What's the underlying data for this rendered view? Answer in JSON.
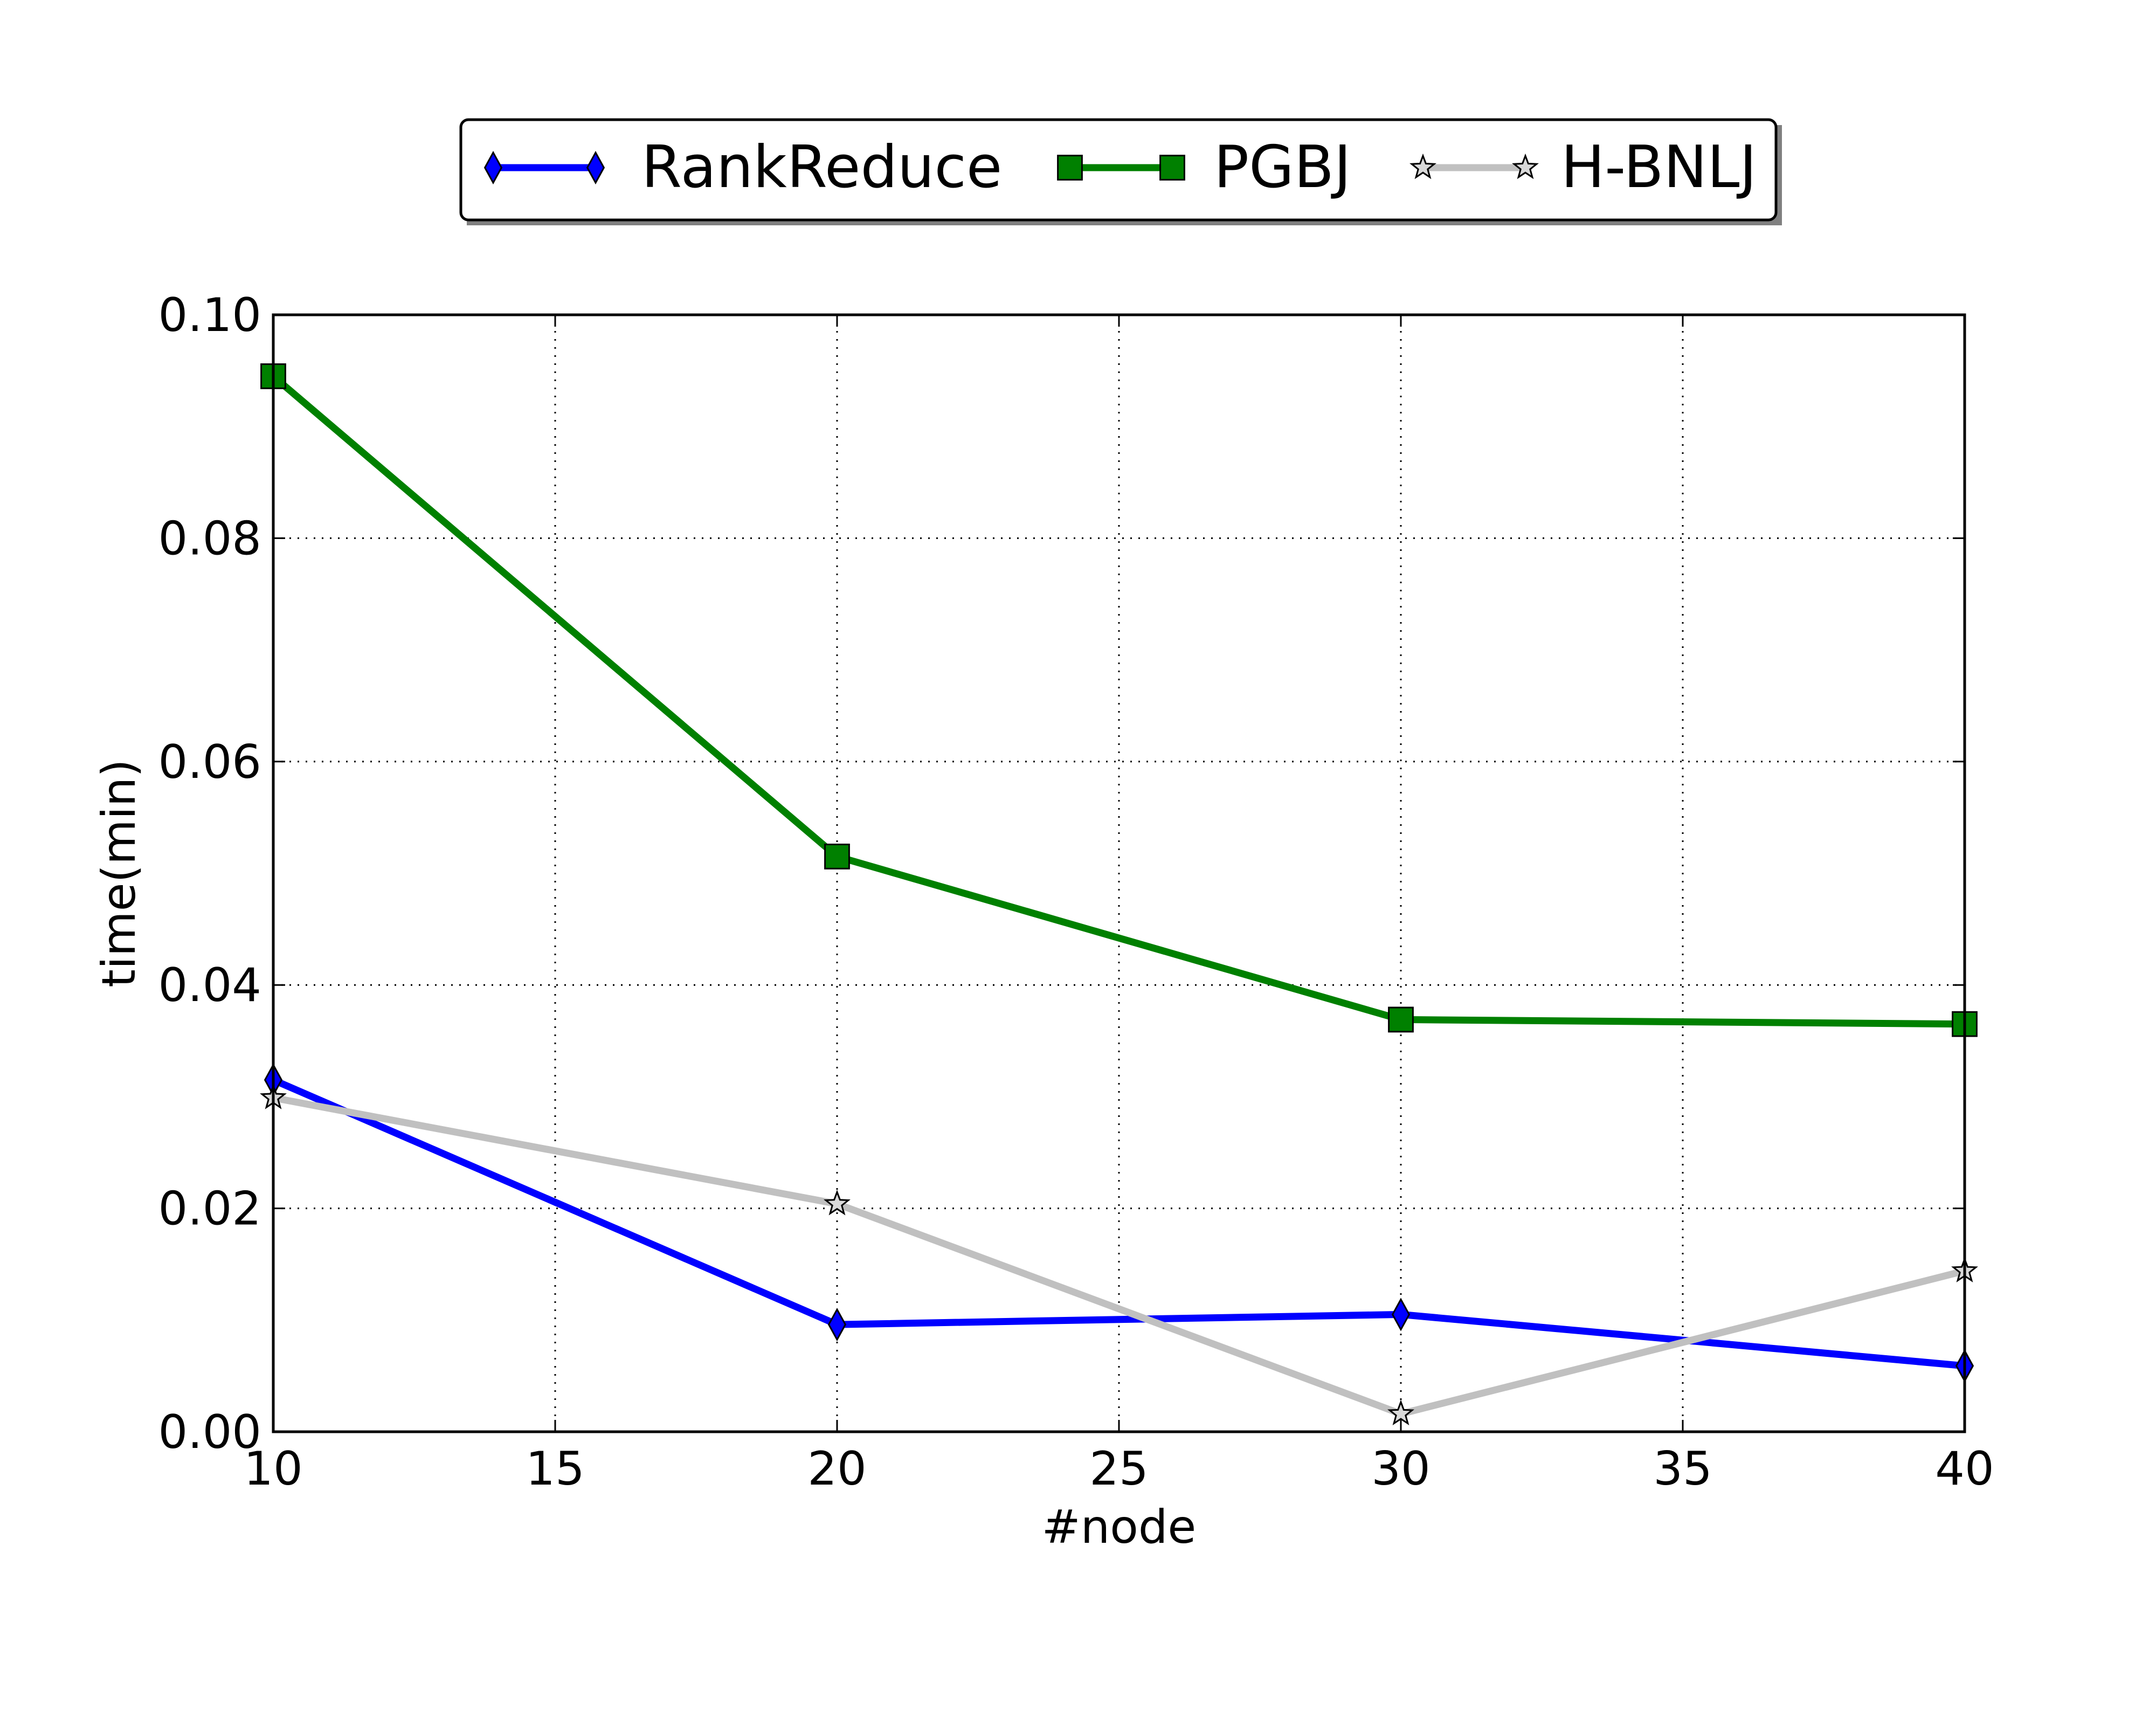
{
  "chart_data": {
    "type": "line",
    "title": "",
    "xlabel": "#node",
    "ylabel": "time(min)",
    "xlim": [
      10,
      40
    ],
    "ylim": [
      0.0,
      0.1
    ],
    "xticks": [
      10,
      15,
      20,
      25,
      30,
      35,
      40
    ],
    "xtick_labels": [
      "10",
      "15",
      "20",
      "25",
      "30",
      "35",
      "40"
    ],
    "yticks": [
      0.0,
      0.02,
      0.04,
      0.06,
      0.08,
      0.1
    ],
    "ytick_labels": [
      "0.00",
      "0.02",
      "0.04",
      "0.06",
      "0.08",
      "0.10"
    ],
    "grid": true,
    "legend_position": "top-center",
    "x": [
      10,
      20,
      30,
      40
    ],
    "series": [
      {
        "name": "RankReduce",
        "color": "#0000ff",
        "marker": "diamond",
        "values": [
          0.0315,
          0.0096,
          0.0105,
          0.0059
        ]
      },
      {
        "name": "PGBJ",
        "color": "#008000",
        "marker": "square",
        "values": [
          0.0945,
          0.0515,
          0.0369,
          0.0365
        ]
      },
      {
        "name": "H-BNLJ",
        "color": "#c0c0c0",
        "marker": "star",
        "values": [
          0.0299,
          0.0204,
          0.0016,
          0.0144
        ]
      }
    ]
  }
}
